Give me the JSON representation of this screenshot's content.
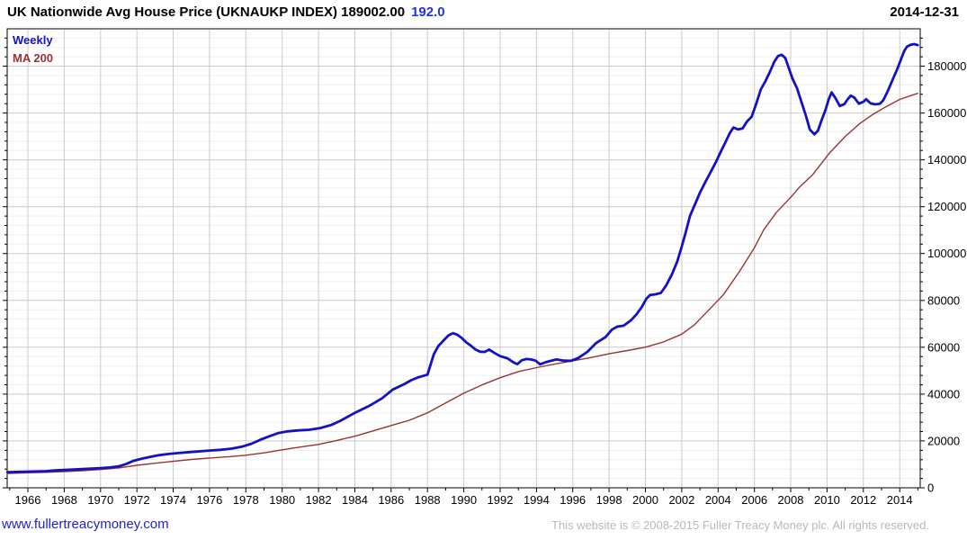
{
  "header": {
    "title": "UK Nationwide Avg House Price (UKNAUKP INDEX) 189002.00",
    "change": "192.0",
    "date": "2014-12-31"
  },
  "legend": {
    "series1": "Weekly",
    "series2": "MA 200"
  },
  "footer": {
    "site_link": "www.fullertreacymoney.com",
    "copyright": "This website is © 2008-2015 Fuller Treacy Money plc. All rights reserved."
  },
  "colors": {
    "weekly_line": "#1212c4",
    "ma_line": "#993333",
    "change_text": "#2233dd",
    "link_text": "#2222cc",
    "copyright_text": "#b8b8b8",
    "grid_major": "#cccccc",
    "grid_minor": "#efefef",
    "axis": "#000000"
  },
  "chart_data": {
    "type": "line",
    "title": "UK Nationwide Avg House Price (UKNAUKP INDEX)",
    "last_value": 189002.0,
    "last_change": 192.0,
    "as_of_date": "2014-12-31",
    "grid": true,
    "legend_position": "top-left",
    "x_axis": {
      "min": 1964.86,
      "max": 2015.13,
      "minor_tick_step": 1,
      "tick_years": [
        1966,
        1968,
        1970,
        1972,
        1974,
        1976,
        1978,
        1980,
        1982,
        1984,
        1986,
        1988,
        1990,
        1992,
        1994,
        1996,
        1998,
        2000,
        2002,
        2004,
        2006,
        2008,
        2010,
        2012,
        2014
      ]
    },
    "y_axis": {
      "min": 0,
      "max": 195950,
      "tick_interval": 20000,
      "minor_tick_interval": 4000,
      "tick_values": [
        0,
        20000,
        40000,
        60000,
        80000,
        100000,
        120000,
        140000,
        160000,
        180000
      ],
      "position": "right"
    },
    "series": [
      {
        "name": "Weekly",
        "color": "#1212c4",
        "width": 2.8,
        "points": [
          [
            1964.87,
            6700
          ],
          [
            1965.5,
            6800
          ],
          [
            1966,
            6900
          ],
          [
            1966.5,
            7000
          ],
          [
            1967,
            7100
          ],
          [
            1967.5,
            7400
          ],
          [
            1968,
            7600
          ],
          [
            1968.5,
            7800
          ],
          [
            1969,
            8000
          ],
          [
            1969.5,
            8200
          ],
          [
            1970,
            8400
          ],
          [
            1970.5,
            8700
          ],
          [
            1971,
            9200
          ],
          [
            1971.4,
            10100
          ],
          [
            1971.8,
            11500
          ],
          [
            1972.3,
            12500
          ],
          [
            1972.8,
            13300
          ],
          [
            1973.2,
            13900
          ],
          [
            1973.7,
            14400
          ],
          [
            1974.2,
            14800
          ],
          [
            1975,
            15300
          ],
          [
            1976,
            15900
          ],
          [
            1976.6,
            16200
          ],
          [
            1977.2,
            16700
          ],
          [
            1977.8,
            17600
          ],
          [
            1978.3,
            18800
          ],
          [
            1978.8,
            20500
          ],
          [
            1979.3,
            22000
          ],
          [
            1979.8,
            23400
          ],
          [
            1980.3,
            24100
          ],
          [
            1980.9,
            24500
          ],
          [
            1981.5,
            24800
          ],
          [
            1982.1,
            25500
          ],
          [
            1982.7,
            26800
          ],
          [
            1983.2,
            28600
          ],
          [
            1984,
            32000
          ],
          [
            1984.8,
            35000
          ],
          [
            1985.5,
            38200
          ],
          [
            1986.1,
            42000
          ],
          [
            1986.7,
            44200
          ],
          [
            1987.1,
            45900
          ],
          [
            1987.5,
            47200
          ],
          [
            1988,
            48300
          ],
          [
            1988.15,
            52000
          ],
          [
            1988.35,
            57000
          ],
          [
            1988.6,
            60500
          ],
          [
            1988.9,
            63000
          ],
          [
            1989.15,
            65000
          ],
          [
            1989.4,
            66000
          ],
          [
            1989.65,
            65300
          ],
          [
            1989.9,
            63900
          ],
          [
            1990.15,
            62000
          ],
          [
            1990.4,
            60600
          ],
          [
            1990.65,
            59000
          ],
          [
            1990.9,
            58100
          ],
          [
            1991.15,
            58000
          ],
          [
            1991.4,
            59000
          ],
          [
            1991.7,
            57500
          ],
          [
            1992,
            56200
          ],
          [
            1992.4,
            55300
          ],
          [
            1992.75,
            53500
          ],
          [
            1992.95,
            52800
          ],
          [
            1993.2,
            54500
          ],
          [
            1993.45,
            55000
          ],
          [
            1993.7,
            54800
          ],
          [
            1993.95,
            54300
          ],
          [
            1994.2,
            52700
          ],
          [
            1994.5,
            53600
          ],
          [
            1994.8,
            54200
          ],
          [
            1995.1,
            54800
          ],
          [
            1995.5,
            54300
          ],
          [
            1995.9,
            54200
          ],
          [
            1996.3,
            55400
          ],
          [
            1996.8,
            58000
          ],
          [
            1997.3,
            61900
          ],
          [
            1997.8,
            64300
          ],
          [
            1998.15,
            67500
          ],
          [
            1998.45,
            68800
          ],
          [
            1998.8,
            69200
          ],
          [
            1999.2,
            71500
          ],
          [
            1999.5,
            74000
          ],
          [
            1999.8,
            77200
          ],
          [
            2000.05,
            80700
          ],
          [
            2000.25,
            82300
          ],
          [
            2000.55,
            82600
          ],
          [
            2000.85,
            83200
          ],
          [
            2001.15,
            86500
          ],
          [
            2001.45,
            91000
          ],
          [
            2001.75,
            96500
          ],
          [
            2002,
            103000
          ],
          [
            2002.2,
            108500
          ],
          [
            2002.45,
            116000
          ],
          [
            2002.7,
            120500
          ],
          [
            2003,
            126000
          ],
          [
            2003.3,
            130500
          ],
          [
            2003.6,
            134900
          ],
          [
            2003.9,
            139400
          ],
          [
            2004.15,
            143500
          ],
          [
            2004.4,
            147500
          ],
          [
            2004.65,
            151500
          ],
          [
            2004.85,
            153800
          ],
          [
            2005.1,
            153000
          ],
          [
            2005.35,
            153400
          ],
          [
            2005.6,
            156500
          ],
          [
            2005.85,
            158400
          ],
          [
            2006.1,
            164000
          ],
          [
            2006.35,
            170000
          ],
          [
            2006.6,
            173500
          ],
          [
            2006.85,
            177500
          ],
          [
            2007.1,
            182000
          ],
          [
            2007.3,
            184300
          ],
          [
            2007.5,
            184900
          ],
          [
            2007.7,
            183500
          ],
          [
            2007.9,
            179100
          ],
          [
            2008.1,
            174600
          ],
          [
            2008.35,
            170500
          ],
          [
            2008.6,
            164400
          ],
          [
            2008.85,
            158500
          ],
          [
            2009.05,
            153000
          ],
          [
            2009.3,
            150900
          ],
          [
            2009.5,
            152500
          ],
          [
            2009.7,
            157000
          ],
          [
            2009.9,
            161000
          ],
          [
            2010.1,
            166000
          ],
          [
            2010.25,
            168800
          ],
          [
            2010.45,
            166500
          ],
          [
            2010.7,
            163000
          ],
          [
            2010.95,
            163800
          ],
          [
            2011.15,
            166000
          ],
          [
            2011.3,
            167400
          ],
          [
            2011.5,
            166600
          ],
          [
            2011.75,
            164000
          ],
          [
            2012,
            164800
          ],
          [
            2012.15,
            165900
          ],
          [
            2012.4,
            164100
          ],
          [
            2012.65,
            163700
          ],
          [
            2012.9,
            163900
          ],
          [
            2013.1,
            165500
          ],
          [
            2013.35,
            169500
          ],
          [
            2013.6,
            174000
          ],
          [
            2013.85,
            178500
          ],
          [
            2014.05,
            182500
          ],
          [
            2014.25,
            186500
          ],
          [
            2014.4,
            188300
          ],
          [
            2014.6,
            189100
          ],
          [
            2014.8,
            189400
          ],
          [
            2014.99,
            189002
          ]
        ]
      },
      {
        "name": "MA 200",
        "color": "#993333",
        "width": 1.4,
        "points": [
          [
            1964.87,
            6100
          ],
          [
            1966,
            6400
          ],
          [
            1967,
            6600
          ],
          [
            1968,
            6900
          ],
          [
            1969,
            7300
          ],
          [
            1970,
            7800
          ],
          [
            1971,
            8500
          ],
          [
            1972,
            9600
          ],
          [
            1973,
            10500
          ],
          [
            1974,
            11300
          ],
          [
            1975,
            12100
          ],
          [
            1976,
            12700
          ],
          [
            1977,
            13200
          ],
          [
            1978,
            13900
          ],
          [
            1979,
            14900
          ],
          [
            1980,
            16200
          ],
          [
            1981,
            17400
          ],
          [
            1982,
            18500
          ],
          [
            1983,
            20200
          ],
          [
            1984,
            22000
          ],
          [
            1985,
            24300
          ],
          [
            1986,
            26600
          ],
          [
            1987,
            28800
          ],
          [
            1988,
            32000
          ],
          [
            1989,
            36200
          ],
          [
            1990,
            40400
          ],
          [
            1991,
            43900
          ],
          [
            1992,
            47000
          ],
          [
            1993,
            49600
          ],
          [
            1994,
            51300
          ],
          [
            1995,
            52800
          ],
          [
            1996,
            54200
          ],
          [
            1997,
            55600
          ],
          [
            1998,
            57200
          ],
          [
            1999,
            58600
          ],
          [
            2000,
            60000
          ],
          [
            2001,
            62300
          ],
          [
            2002,
            65600
          ],
          [
            2002.7,
            69600
          ],
          [
            2003.5,
            76000
          ],
          [
            2004.3,
            82500
          ],
          [
            2005.2,
            92600
          ],
          [
            2006,
            102500
          ],
          [
            2006.5,
            110000
          ],
          [
            2007.2,
            117500
          ],
          [
            2008,
            124000
          ],
          [
            2008.5,
            128500
          ],
          [
            2009.2,
            133600
          ],
          [
            2010.1,
            142600
          ],
          [
            2011,
            150000
          ],
          [
            2011.8,
            155500
          ],
          [
            2012.5,
            159300
          ],
          [
            2013.2,
            162500
          ],
          [
            2014,
            165800
          ],
          [
            2014.99,
            168400
          ]
        ]
      }
    ]
  }
}
